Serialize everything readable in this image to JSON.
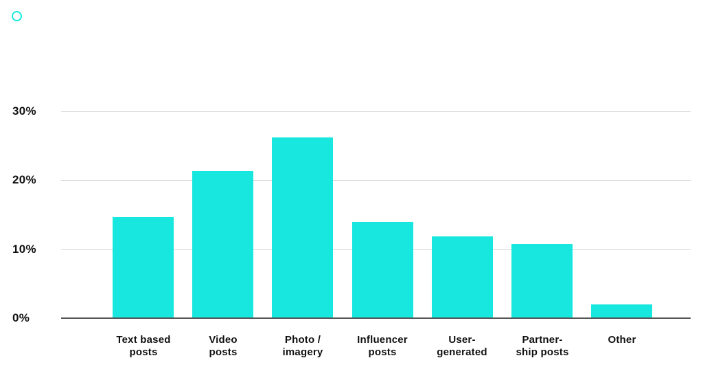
{
  "brand": {
    "icon": "circle-outline-icon",
    "color": "#17E7DE"
  },
  "chart_data": {
    "type": "bar",
    "title": "",
    "xlabel": "",
    "ylabel": "",
    "unit": "%",
    "categories": [
      "Text based\nposts",
      "Video\nposts",
      "Photo /\nimagery",
      "Influencer\nposts",
      "User-\ngenerated",
      "Partner-\nship posts",
      "Other"
    ],
    "values": [
      14.6,
      21.3,
      26.2,
      13.9,
      11.8,
      10.7,
      2.0
    ],
    "y_ticks": [
      {
        "label": "0%",
        "value": 0
      },
      {
        "label": "10%",
        "value": 10
      },
      {
        "label": "20%",
        "value": 20
      },
      {
        "label": "30%",
        "value": 30
      }
    ],
    "ylim": [
      0,
      30
    ],
    "grid": true,
    "legend": "none",
    "bar_color": "#17E7DE",
    "gridline_color": "#d8d8d8",
    "axis_color": "#565656",
    "label_color": "#111111"
  }
}
